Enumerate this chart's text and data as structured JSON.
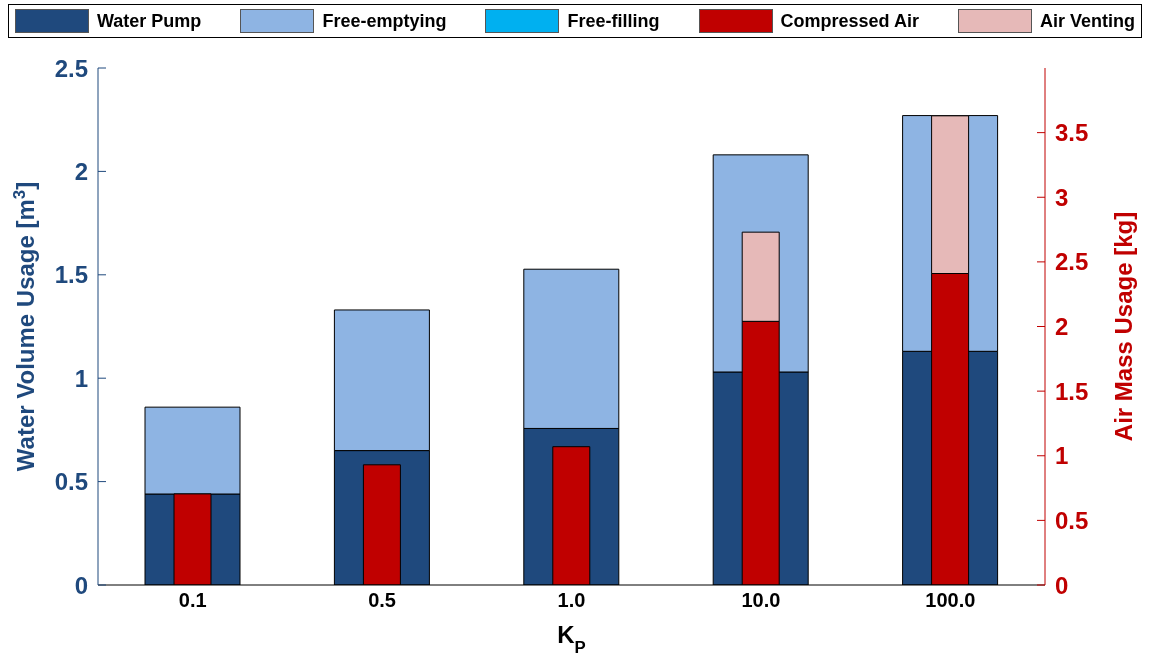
{
  "chart_data": {
    "type": "bar",
    "stacked": true,
    "categories": [
      "0.1",
      "0.5",
      "1.0",
      "10.0",
      "100.0"
    ],
    "xlabel": "K$_{P}$",
    "ylabel": "Water Volume Usage [m$^{3}$]",
    "y2label": "Air Mass Usage [kg]",
    "series": [
      {
        "name": "Water Pump",
        "color": "#1f497d",
        "values": [
          0.44,
          0.65,
          0.757,
          1.03,
          1.13
        ]
      },
      {
        "name": "Free-emptying",
        "color": "#8eb4e3",
        "values": [
          0.42,
          0.68,
          0.77,
          1.05,
          1.14
        ]
      },
      {
        "name": "Free-filling",
        "color": "#00b0f0",
        "values": [
          0,
          0,
          0,
          0,
          0
        ]
      },
      {
        "name": "Compressed Air",
        "color": "#c00000",
        "axis": "y2",
        "values": [
          0.705,
          0.93,
          1.07,
          2.04,
          2.41
        ]
      },
      {
        "name": "Air Venting",
        "color": "#e6b9b8",
        "axis": "y2",
        "values": [
          0,
          0,
          0,
          0.69,
          1.22
        ]
      }
    ],
    "ylim": [
      0,
      2.5
    ],
    "yticks": [
      0,
      0.5,
      1,
      1.5,
      2,
      2.5
    ],
    "y2lim": [
      0,
      4
    ],
    "y2ticks": [
      0,
      0.5,
      1,
      1.5,
      2,
      2.5,
      3,
      3.5
    ],
    "legend": "top"
  }
}
